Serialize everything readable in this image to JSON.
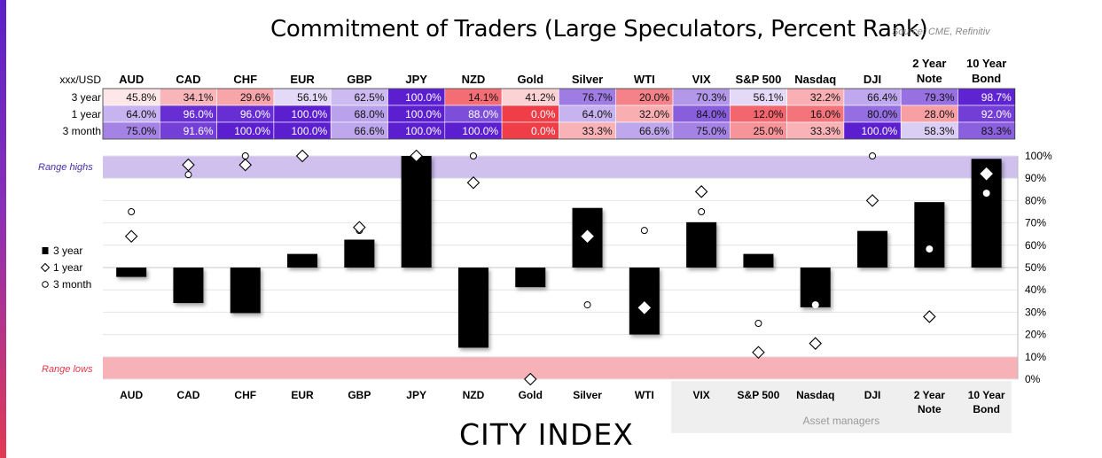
{
  "title": "Commitment of Traders (Large Speculators, Percent Rank)",
  "source": "Source: CME, Refinitiv",
  "brand": "CITY INDEX",
  "table": {
    "corner_label": "xxx/USD",
    "row_labels": [
      "3 year",
      "1 year",
      "3 month"
    ]
  },
  "band_labels": {
    "high": "Range highs",
    "low": "Range lows"
  },
  "group_label": "Asset managers",
  "colors": {
    "purple_strong": "#5b1fd0",
    "red_strong": "#f03e48",
    "range_high_band": "#cfc0ee",
    "range_low_band": "#f7b2b8",
    "group_background": "#efefef"
  },
  "chart_data": {
    "type": "bar",
    "baseline": 50,
    "ylim": [
      0,
      100
    ],
    "yticks": [
      "0%",
      "10%",
      "20%",
      "30%",
      "40%",
      "50%",
      "60%",
      "70%",
      "80%",
      "90%",
      "100%"
    ],
    "categories": [
      {
        "short": "AUD",
        "lines": [
          "AUD"
        ]
      },
      {
        "short": "CAD",
        "lines": [
          "CAD"
        ]
      },
      {
        "short": "CHF",
        "lines": [
          "CHF"
        ]
      },
      {
        "short": "EUR",
        "lines": [
          "EUR"
        ]
      },
      {
        "short": "GBP",
        "lines": [
          "GBP"
        ]
      },
      {
        "short": "JPY",
        "lines": [
          "JPY"
        ]
      },
      {
        "short": "NZD",
        "lines": [
          "NZD"
        ]
      },
      {
        "short": "Gold",
        "lines": [
          "Gold"
        ]
      },
      {
        "short": "Silver",
        "lines": [
          "Silver"
        ]
      },
      {
        "short": "WTI",
        "lines": [
          "WTI"
        ]
      },
      {
        "short": "VIX",
        "lines": [
          "VIX"
        ]
      },
      {
        "short": "S&P 500",
        "lines": [
          "S&P 500"
        ]
      },
      {
        "short": "Nasdaq",
        "lines": [
          "Nasdaq"
        ]
      },
      {
        "short": "DJI",
        "lines": [
          "DJI"
        ]
      },
      {
        "short": "2 Year Note",
        "lines": [
          "2 Year",
          "Note"
        ]
      },
      {
        "short": "10 Year Bond",
        "lines": [
          "10 Year",
          "Bond"
        ]
      }
    ],
    "series": [
      {
        "name": "3 year",
        "marker": "bar",
        "values": [
          45.8,
          34.1,
          29.6,
          56.1,
          62.5,
          100.0,
          14.1,
          41.2,
          76.7,
          20.0,
          70.3,
          56.1,
          32.2,
          66.4,
          79.3,
          98.7
        ]
      },
      {
        "name": "1 year",
        "marker": "diamond",
        "values": [
          64.0,
          96.0,
          96.0,
          100.0,
          68.0,
          100.0,
          88.0,
          0.0,
          64.0,
          32.0,
          84.0,
          12.0,
          16.0,
          80.0,
          28.0,
          92.0
        ]
      },
      {
        "name": "3 month",
        "marker": "circle",
        "values": [
          75.0,
          91.6,
          100.0,
          100.0,
          66.6,
          100.0,
          100.0,
          0.0,
          33.3,
          66.6,
          75.0,
          25.0,
          33.3,
          100.0,
          58.3,
          83.3
        ]
      }
    ],
    "range_high": [
      90,
      100
    ],
    "range_low": [
      0,
      10
    ],
    "grid": true,
    "legend_position": "left",
    "group_highlight": {
      "from": "VIX",
      "to": "10 Year Bond"
    }
  }
}
